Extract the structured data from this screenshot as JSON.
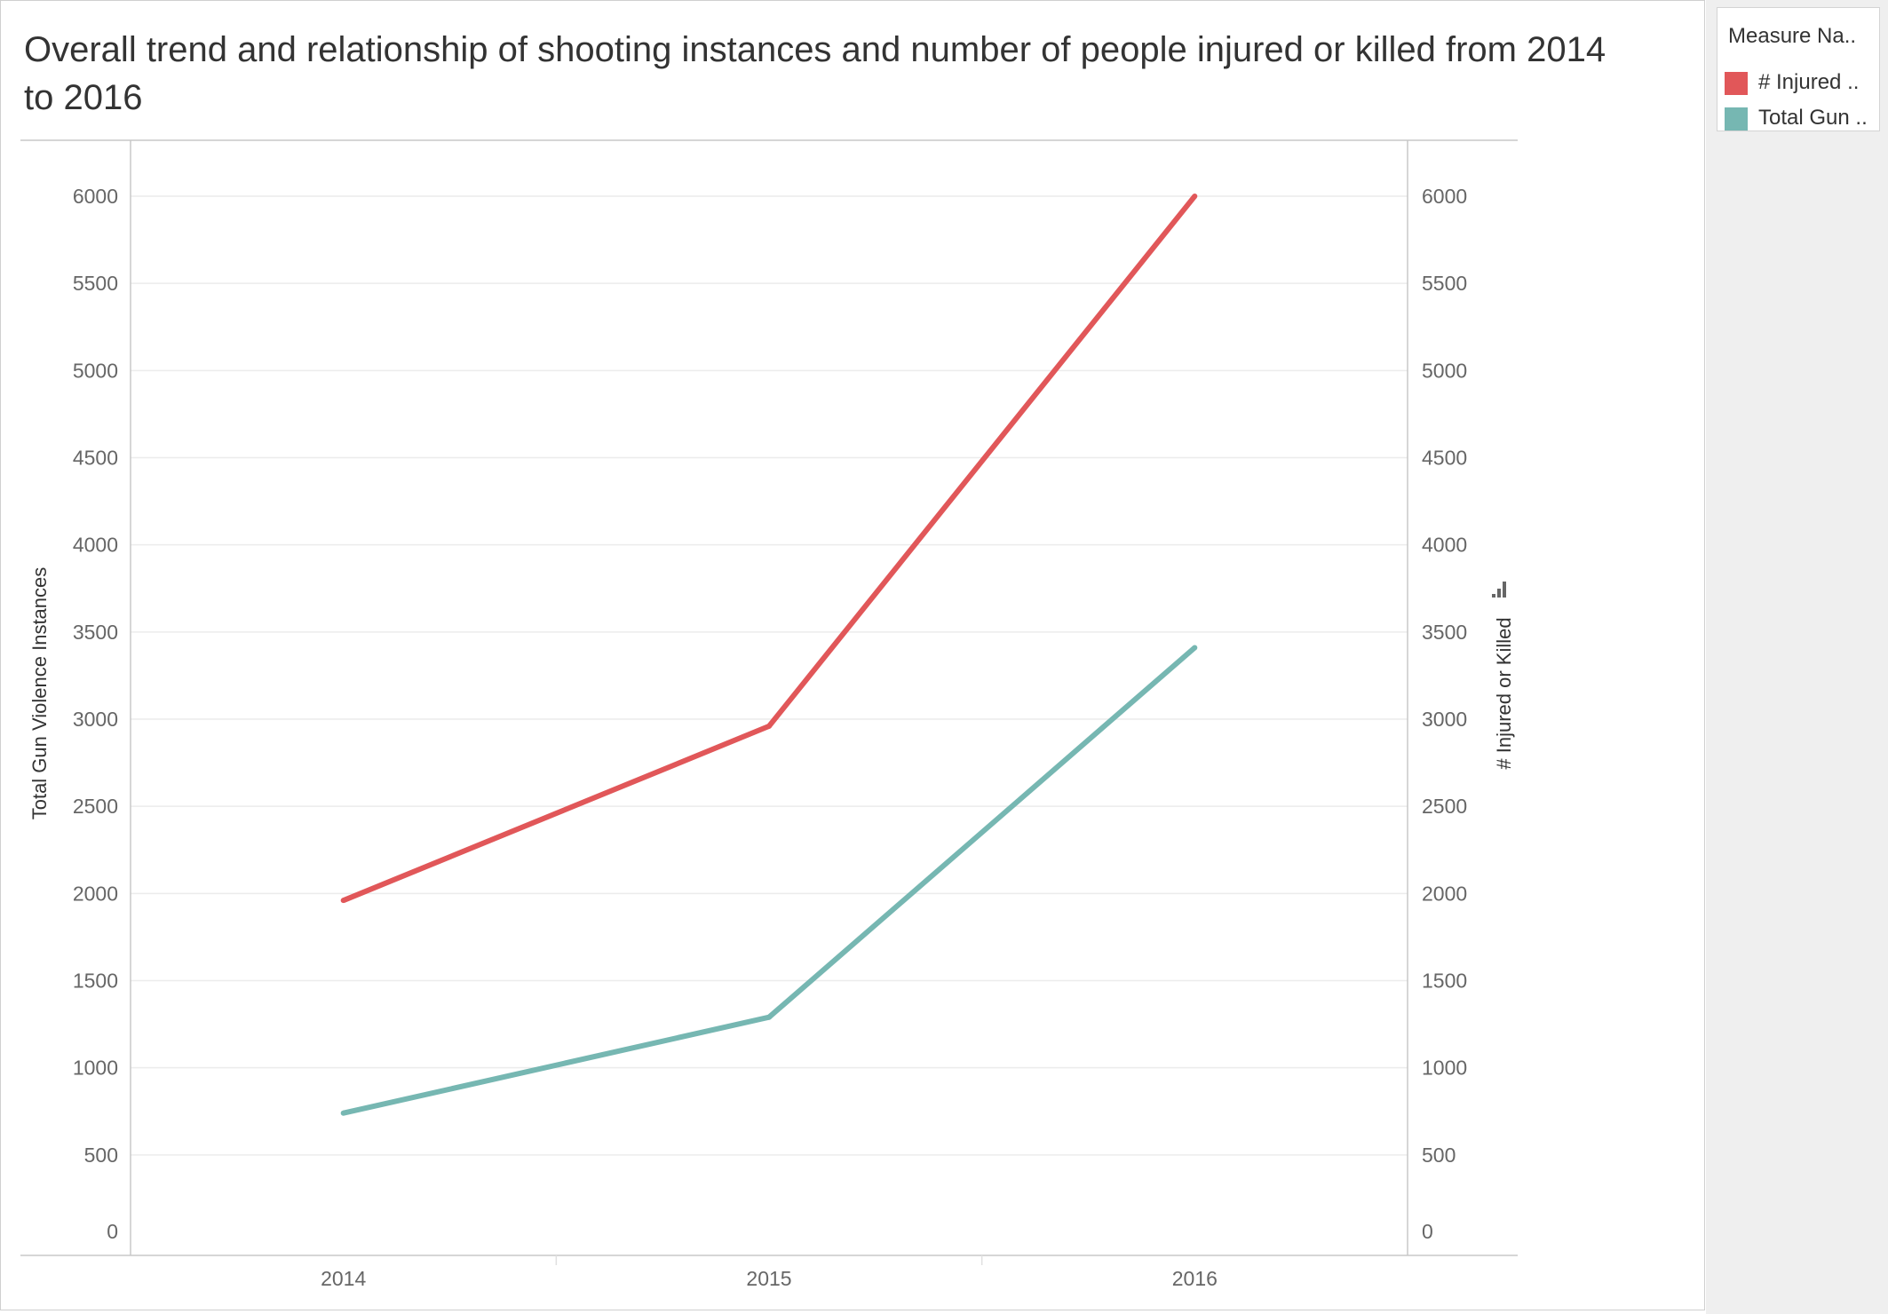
{
  "colors": {
    "injured": "#e15759",
    "total": "#76b7b2",
    "grid": "#ececec",
    "axis": "#c8c8c8",
    "tick_text": "#666666",
    "label_text": "#333333"
  },
  "legend": {
    "title": "Measure Na..",
    "items": [
      {
        "label": "# Injured ..",
        "color": "#e15759"
      },
      {
        "label": "Total Gun ..",
        "color": "#76b7b2"
      }
    ]
  },
  "chart_data": {
    "type": "line",
    "title": "Overall trend and relationship of shooting instances and number of people injured or killed from 2014 to 2016",
    "categories": [
      "2014",
      "2015",
      "2016"
    ],
    "ylabel_left": "Total Gun Violence Instances",
    "ylabel_right": "# Injured or Killed",
    "ylim": [
      0,
      6300
    ],
    "yticks": [
      "0",
      "500",
      "1000",
      "1500",
      "2000",
      "2500",
      "3000",
      "3500",
      "4000",
      "4500",
      "5000",
      "5500",
      "6000"
    ],
    "grid": true,
    "legend_position": "top-right",
    "series": [
      {
        "name": "# Injured or Killed",
        "axis": "right",
        "color": "#e15759",
        "values": [
          1960,
          2960,
          6000
        ]
      },
      {
        "name": "Total Gun Violence Instances",
        "axis": "left",
        "color": "#76b7b2",
        "values": [
          740,
          1290,
          3410
        ]
      }
    ]
  }
}
